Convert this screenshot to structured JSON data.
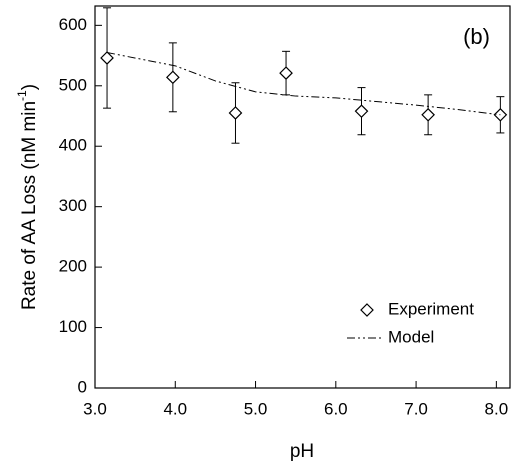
{
  "chart_data": {
    "type": "scatter",
    "annotation": "(b)",
    "x_label": "pH",
    "y_label": "Rate of AA Loss (nM min",
    "y_label_sup": "-1",
    "y_label_end": ")",
    "xlim": [
      3.0,
      8.17
    ],
    "ylim": [
      0,
      632
    ],
    "xticks": [
      {
        "value": 3,
        "label": "3.0"
      },
      {
        "value": 4,
        "label": "4.0"
      },
      {
        "value": 5,
        "label": "5.0"
      },
      {
        "value": 6,
        "label": "6.0"
      },
      {
        "value": 7,
        "label": "7.0"
      },
      {
        "value": 8,
        "label": "8.0"
      }
    ],
    "yticks": [
      0,
      100,
      200,
      300,
      400,
      500,
      600
    ],
    "legend": "lower right",
    "series": [
      {
        "name": "Experiment",
        "color": "#000000",
        "marker": "diamond",
        "x": [
          3.15,
          3.97,
          4.75,
          5.38,
          6.32,
          7.15,
          8.05
        ],
        "values": [
          546,
          514,
          455,
          521,
          458,
          452,
          452
        ],
        "errors": [
          83,
          57,
          50,
          36,
          39,
          33,
          30
        ]
      },
      {
        "name": "Model",
        "color": "#000000",
        "line": "dash-dot",
        "x": [
          3.15,
          4.0,
          4.5,
          5.0,
          5.5,
          6.0,
          6.5,
          7.0,
          7.5,
          8.05
        ],
        "values": [
          555,
          533,
          508,
          490,
          483,
          480,
          474,
          468,
          461,
          452
        ]
      }
    ]
  }
}
